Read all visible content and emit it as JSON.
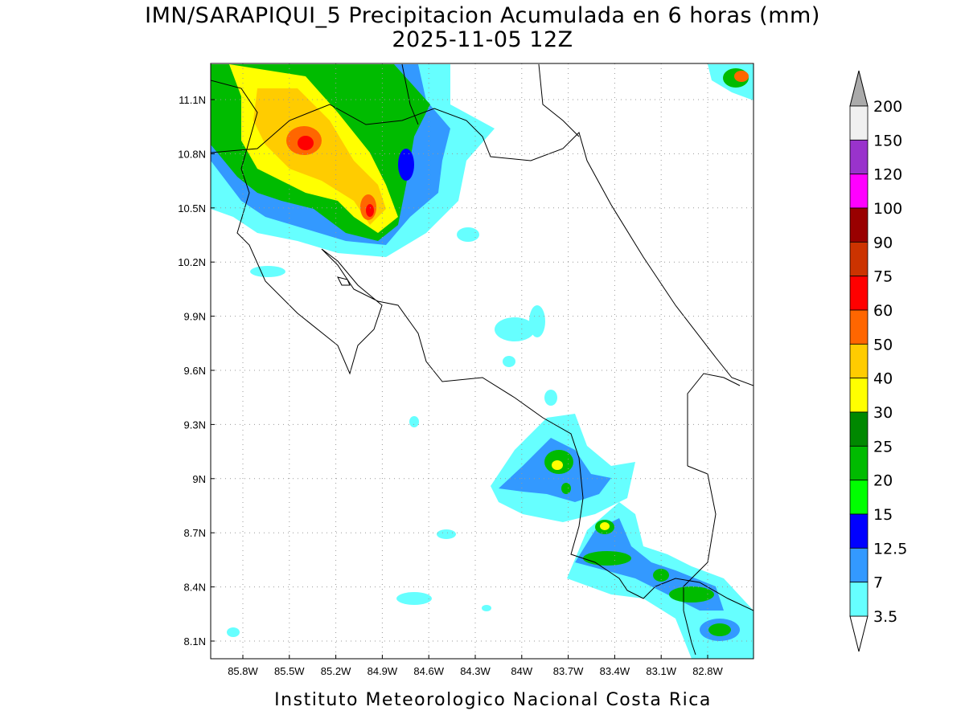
{
  "title": "IMN/SARAPIQUI_5 Precipitacion Acumulada en 6 horas (mm)",
  "subtitle": "2025-11-05 12Z",
  "footer": "Instituto Meteorologico Nacional Costa Rica",
  "map": {
    "lat_labels": [
      "11.1N",
      "10.8N",
      "10.5N",
      "10.2N",
      "9.9N",
      "9.6N",
      "9.3N",
      "9N",
      "8.7N",
      "8.4N",
      "8.1N"
    ],
    "lon_labels": [
      "85.8W",
      "85.5W",
      "85.2W",
      "84.9W",
      "84.6W",
      "84.3W",
      "84W",
      "83.7W",
      "83.4W",
      "83.1W",
      "82.8W"
    ]
  },
  "colorbar": {
    "labels": [
      "200",
      "150",
      "120",
      "100",
      "90",
      "75",
      "60",
      "50",
      "40",
      "30",
      "25",
      "20",
      "15",
      "12.5",
      "7",
      "3.5"
    ],
    "colors": [
      "#f0f0f0",
      "#9933cc",
      "#ff00ff",
      "#990000",
      "#cc3300",
      "#ff0000",
      "#ff6600",
      "#ffcc00",
      "#ffff00",
      "#008800",
      "#00bb00",
      "#00ff00",
      "#0000ff",
      "#3399ff",
      "#66ffff"
    ],
    "over_color": "#aaaaaa",
    "under_color": "#ffffff"
  }
}
